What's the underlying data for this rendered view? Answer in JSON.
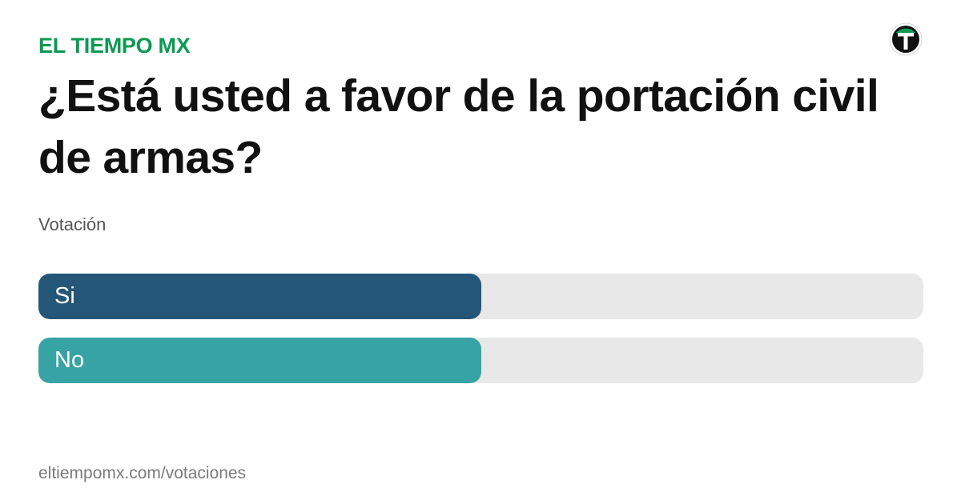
{
  "brand": {
    "name": "EL TIEMPO MX",
    "color": "#0a9a52",
    "logo_icon": "el-tiempo-t-logo"
  },
  "poll": {
    "question": "¿Está usted a favor de la portación civil de armas?",
    "subtitle": "Votación",
    "options": [
      {
        "label": "Si",
        "share": 0.5,
        "color": "#235677"
      },
      {
        "label": "No",
        "share": 0.5,
        "color": "#37a3a5"
      }
    ],
    "track_color": "#e8e8e8"
  },
  "footer": {
    "url": "eltiempomx.com/votaciones"
  }
}
